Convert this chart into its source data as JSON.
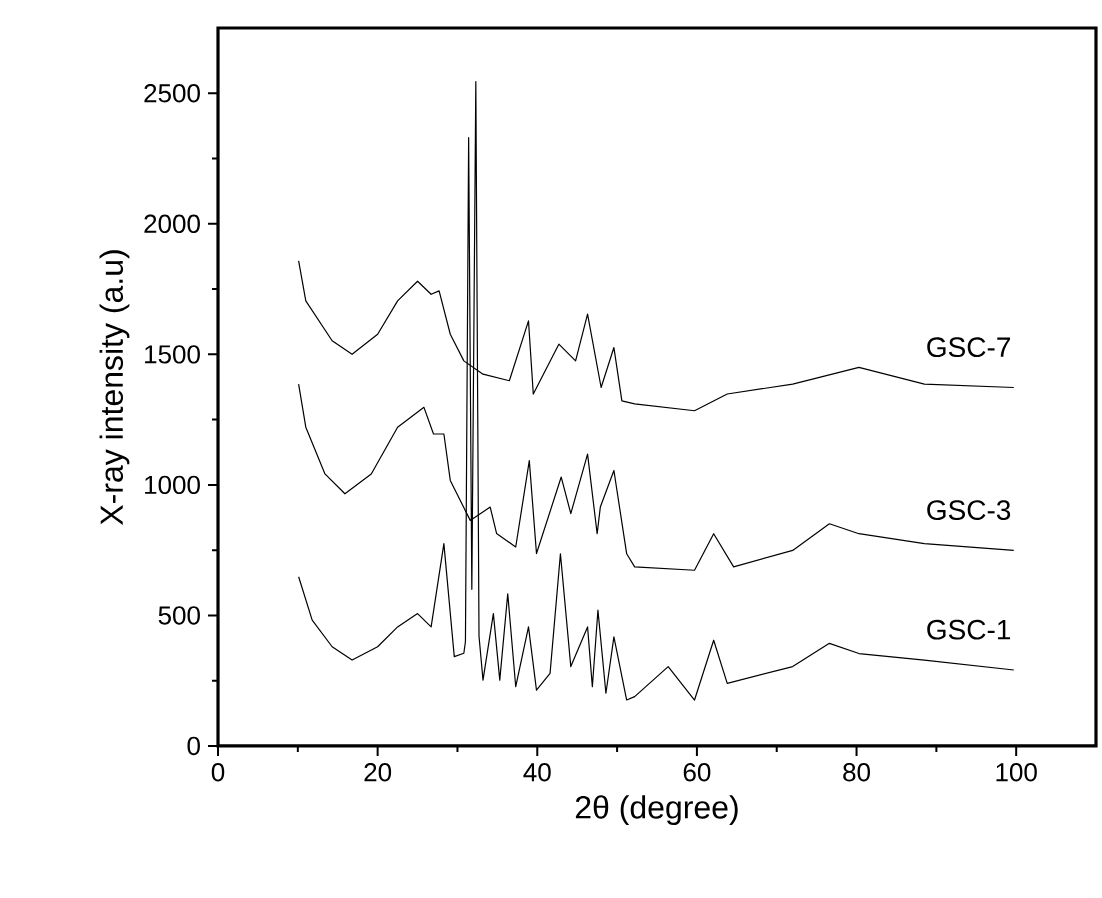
{
  "chart_data": {
    "type": "line",
    "xlabel": "2θ (degree)",
    "ylabel": "X-ray intensity (a.u)",
    "xlim": [
      0,
      110
    ],
    "ylim": [
      0,
      2750
    ],
    "xticks": [
      0,
      20,
      40,
      60,
      80,
      100
    ],
    "yticks": [
      0,
      500,
      1000,
      1500,
      2000,
      2500
    ],
    "grid": false,
    "legend": false,
    "marker": "none",
    "line_style": "solid",
    "series": [
      {
        "name": "GSC-7",
        "color": "#000000",
        "x": [
          10.1,
          11,
          14.3,
          16.8,
          20,
          22.5,
          25,
          26.7,
          27.7,
          29.1,
          30.8,
          33.2,
          36.5,
          38.9,
          39.5,
          42.7,
          44.8,
          46.3,
          48,
          49.6,
          50.6,
          52.2,
          59.7,
          63.8,
          72,
          80.3,
          88.5,
          99.7
        ],
        "values": [
          1858,
          1705,
          1552,
          1500,
          1577,
          1705,
          1780,
          1730,
          1743,
          1577,
          1475,
          1424,
          1399,
          1628,
          1348,
          1539,
          1475,
          1654,
          1373,
          1526,
          1322,
          1310,
          1284,
          1348,
          1386,
          1450,
          1386,
          1373
        ]
      },
      {
        "name": "GSC-3",
        "color": "#000000",
        "x": [
          10.1,
          11,
          13.4,
          15.9,
          19.2,
          22.5,
          25.8,
          27,
          28.3,
          29.1,
          31.6,
          34.1,
          34.9,
          37.3,
          39,
          39.9,
          43,
          44.2,
          46.3,
          47.5,
          47.9,
          49.6,
          51.2,
          52.2,
          59.7,
          62.1,
          64.6,
          72,
          76.6,
          80.3,
          88.5,
          99.7
        ],
        "values": [
          1386,
          1221,
          1042,
          966,
          1042,
          1221,
          1297,
          1195,
          1195,
          1017,
          864,
          915,
          814,
          762,
          1093,
          737,
          1030,
          890,
          1118,
          813,
          915,
          1055,
          736,
          686,
          673,
          813,
          686,
          749,
          851,
          813,
          775,
          749
        ]
      },
      {
        "name": "GSC-1",
        "color": "#000000",
        "x": [
          10.1,
          11.8,
          14.3,
          16.8,
          20,
          22.5,
          25,
          26.7,
          28.3,
          29.6,
          30.8,
          31.0,
          31.4,
          31.8,
          32.3,
          32.7,
          33.2,
          34.5,
          35.3,
          36.3,
          37.3,
          38.9,
          39.9,
          41.6,
          42.9,
          44.2,
          46.3,
          46.9,
          47.6,
          48.6,
          49.6,
          51.2,
          52.2,
          56.4,
          59.7,
          62.1,
          63.8,
          72,
          76.6,
          80.3,
          88.5,
          99.7
        ],
        "values": [
          648,
          482,
          380,
          329,
          380,
          456,
          507,
          456,
          775,
          342,
          355,
          400,
          2330,
          600,
          2545,
          420,
          252,
          507,
          252,
          583,
          227,
          456,
          214,
          278,
          736,
          304,
          456,
          227,
          520,
          202,
          418,
          176,
          189,
          304,
          176,
          405,
          240,
          304,
          393,
          354,
          329,
          291
        ]
      }
    ]
  }
}
